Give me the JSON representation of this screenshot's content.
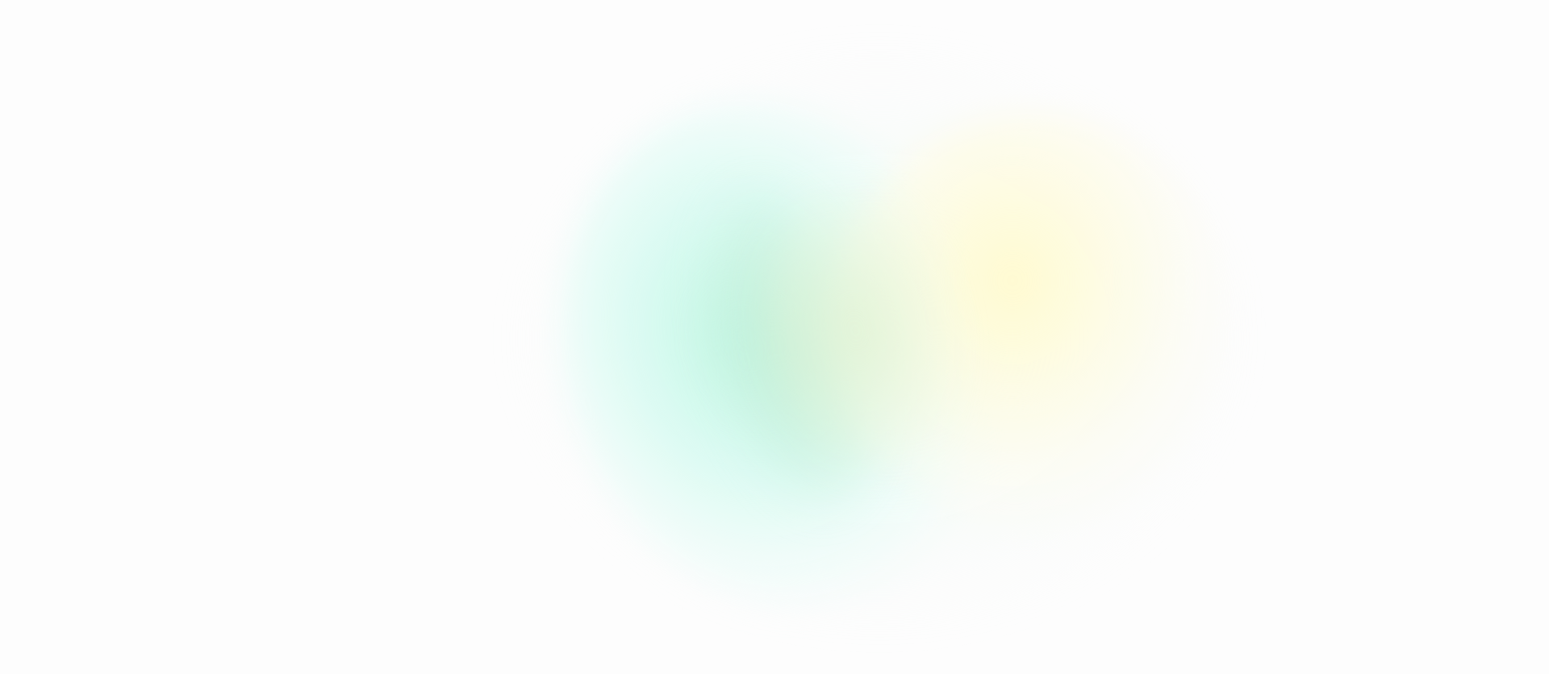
{
  "background": {
    "base_color": "#fdfdfd",
    "blobs": [
      {
        "name": "haze",
        "color": "#ebfaf5"
      },
      {
        "name": "cyan",
        "color": "#bef5e1"
      },
      {
        "name": "mint",
        "color": "#b9ebd2"
      },
      {
        "name": "yellow",
        "color": "#fffacd"
      },
      {
        "name": "blend",
        "color": "#e1f2d2"
      }
    ]
  }
}
